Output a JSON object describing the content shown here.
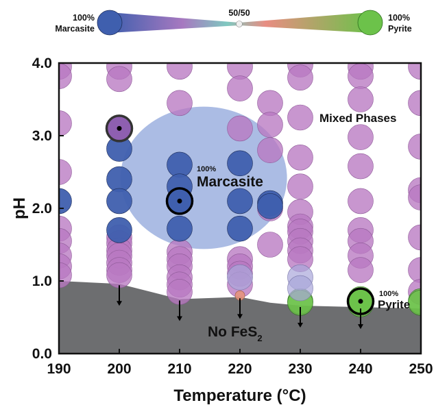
{
  "colors": {
    "marcasite": "#3f5fae",
    "pyrite": "#6cc24a",
    "mixed": "#b878c2",
    "marcasite_region": "#9cb0df",
    "no_fes2_region": "#6d6e70"
  },
  "legend": {
    "left_label_line1": "100%",
    "left_label_line2": "Marcasite",
    "center_label": "50/50",
    "right_label_line1": "100%",
    "right_label_line2": "Pyrite"
  },
  "annotations": {
    "mixed_phases": "Mixed Phases",
    "marcasite_pct": "100%",
    "marcasite_name": "Marcasite",
    "pyrite_pct": "100%",
    "pyrite_name": "Pyrite",
    "no_fes2_main": "No FeS",
    "no_fes2_sub": "2"
  },
  "chart_data": {
    "type": "scatter",
    "xlabel": "Temperature (°C)",
    "ylabel": "pH",
    "xlim": [
      190,
      250
    ],
    "ylim": [
      0,
      4
    ],
    "x_ticks": [
      "190",
      "200",
      "210",
      "220",
      "230",
      "240",
      "250"
    ],
    "y_ticks": [
      "0.0",
      "1.0",
      "2.0",
      "3.0",
      "4.0"
    ],
    "grid": false,
    "series": [
      {
        "phase": "mixed",
        "points": [
          [
            190,
            3.95
          ],
          [
            190,
            3.82
          ],
          [
            190,
            3.17
          ],
          [
            190,
            2.5
          ],
          [
            190,
            1.72
          ],
          [
            190,
            1.55
          ],
          [
            190,
            1.35
          ],
          [
            190,
            1.2
          ],
          [
            190,
            1.08
          ],
          [
            200,
            3.95
          ],
          [
            200,
            3.78
          ],
          [
            200,
            1.6
          ],
          [
            200,
            1.52
          ],
          [
            200,
            1.42
          ],
          [
            200,
            1.35
          ],
          [
            200,
            1.25
          ],
          [
            200,
            1.15
          ],
          [
            200,
            1.08
          ],
          [
            210,
            3.95
          ],
          [
            210,
            3.45
          ],
          [
            210,
            1.4
          ],
          [
            210,
            1.3
          ],
          [
            210,
            1.2
          ],
          [
            210,
            1.05
          ],
          [
            210,
            0.95
          ],
          [
            210,
            0.85
          ],
          [
            220,
            3.95
          ],
          [
            220,
            3.65
          ],
          [
            220,
            3.1
          ],
          [
            220,
            1.3
          ],
          [
            220,
            1.2
          ],
          [
            220,
            1.1
          ],
          [
            220,
            0.95
          ],
          [
            225,
            3.45
          ],
          [
            225,
            3.15
          ],
          [
            225,
            2.8
          ],
          [
            225,
            2.0
          ],
          [
            225,
            1.5
          ],
          [
            230,
            3.98
          ],
          [
            230,
            3.8
          ],
          [
            230,
            3.25
          ],
          [
            230,
            2.7
          ],
          [
            230,
            2.3
          ],
          [
            230,
            1.95
          ],
          [
            230,
            1.75
          ],
          [
            230,
            1.68
          ],
          [
            230,
            1.55
          ],
          [
            230,
            1.42
          ],
          [
            230,
            1.3
          ],
          [
            240,
            3.95
          ],
          [
            240,
            3.82
          ],
          [
            240,
            3.5
          ],
          [
            240,
            2.98
          ],
          [
            240,
            2.58
          ],
          [
            240,
            2.1
          ],
          [
            240,
            1.7
          ],
          [
            240,
            1.55
          ],
          [
            240,
            1.35
          ],
          [
            240,
            1.15
          ],
          [
            250,
            3.95
          ],
          [
            250,
            3.45
          ],
          [
            250,
            2.85
          ],
          [
            250,
            2.25
          ],
          [
            250,
            2.15
          ],
          [
            250,
            1.6
          ],
          [
            250,
            1.15
          ],
          [
            250,
            0.85
          ]
        ]
      },
      {
        "phase": "marcasite",
        "points": [
          [
            190,
            2.1
          ],
          [
            200,
            2.82
          ],
          [
            200,
            2.4
          ],
          [
            200,
            2.1
          ],
          [
            200,
            1.7
          ],
          [
            210,
            2.6
          ],
          [
            210,
            2.3
          ],
          [
            210,
            2.1
          ],
          [
            210,
            1.72
          ],
          [
            220,
            2.62
          ],
          [
            220,
            2.1
          ],
          [
            220,
            1.72
          ],
          [
            225,
            2.07
          ],
          [
            225,
            2.03
          ]
        ]
      },
      {
        "phase": "pyrite",
        "points": [
          [
            230,
            0.72
          ],
          [
            230,
            0.7
          ],
          [
            240,
            0.75
          ],
          [
            240,
            0.68
          ],
          [
            250,
            0.72
          ],
          [
            250,
            0.7
          ]
        ]
      },
      {
        "phase": "lavender",
        "points": [
          [
            230,
            1.05
          ],
          [
            230,
            0.9
          ],
          [
            220,
            1.05
          ]
        ]
      },
      {
        "phase": "salmon",
        "points": [
          [
            220,
            0.8
          ]
        ]
      },
      {
        "phase": "highlighted",
        "points": [
          [
            200,
            3.1
          ],
          [
            210,
            2.1
          ],
          [
            240,
            0.72
          ]
        ]
      }
    ],
    "regions": [
      {
        "name": "marcasite_region",
        "center": [
          214,
          2.42
        ],
        "radius_x": 13.8,
        "radius_y": 0.98
      },
      {
        "name": "no_fes2_region",
        "boundary": [
          [
            190,
            1.0
          ],
          [
            200,
            0.96
          ],
          [
            210,
            0.75
          ],
          [
            220,
            0.78
          ],
          [
            225,
            0.7
          ],
          [
            230,
            0.66
          ],
          [
            240,
            0.64
          ],
          [
            250,
            0.62
          ]
        ]
      }
    ],
    "boundary_arrows": [
      [
        200,
        0.96
      ],
      [
        210,
        0.75
      ],
      [
        220,
        0.78
      ],
      [
        230,
        0.66
      ],
      [
        240,
        0.64
      ]
    ]
  }
}
